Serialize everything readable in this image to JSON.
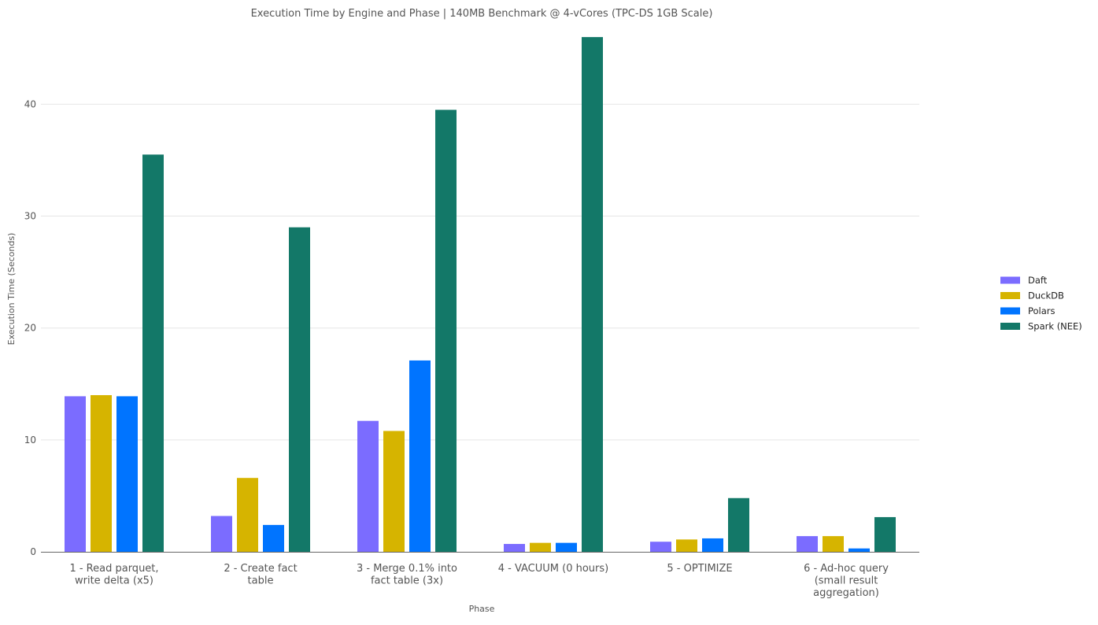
{
  "chart_data": {
    "type": "bar",
    "title": "Execution Time by Engine and Phase | 140MB Benchmark @ 4-vCores (TPC-DS 1GB Scale)",
    "xlabel": "Phase",
    "ylabel": "Execution Time (Seconds)",
    "ylim": [
      0,
      46.5
    ],
    "yticks": [
      0,
      10,
      20,
      30,
      40
    ],
    "grid": true,
    "legend_position": "right",
    "categories": [
      [
        "1 - Read parquet,",
        "write delta (x5)"
      ],
      [
        "2 - Create fact",
        "table"
      ],
      [
        "3 - Merge 0.1% into",
        "fact table (3x)"
      ],
      [
        "4 - VACUUM (0 hours)"
      ],
      [
        "5 - OPTIMIZE"
      ],
      [
        "6 - Ad-hoc query",
        "(small result",
        "aggregation)"
      ]
    ],
    "series": [
      {
        "name": "Daft",
        "color": "#7b6cff",
        "values": [
          13.9,
          3.2,
          11.7,
          0.7,
          0.9,
          1.4
        ]
      },
      {
        "name": "DuckDB",
        "color": "#d6b400",
        "values": [
          14.0,
          6.6,
          10.8,
          0.8,
          1.1,
          1.4
        ]
      },
      {
        "name": "Polars",
        "color": "#0074ff",
        "values": [
          13.9,
          2.4,
          17.1,
          0.8,
          1.2,
          0.3
        ]
      },
      {
        "name": "Spark (NEE)",
        "color": "#137868",
        "values": [
          35.5,
          29.0,
          39.5,
          46.0,
          4.8,
          3.1
        ]
      }
    ]
  }
}
